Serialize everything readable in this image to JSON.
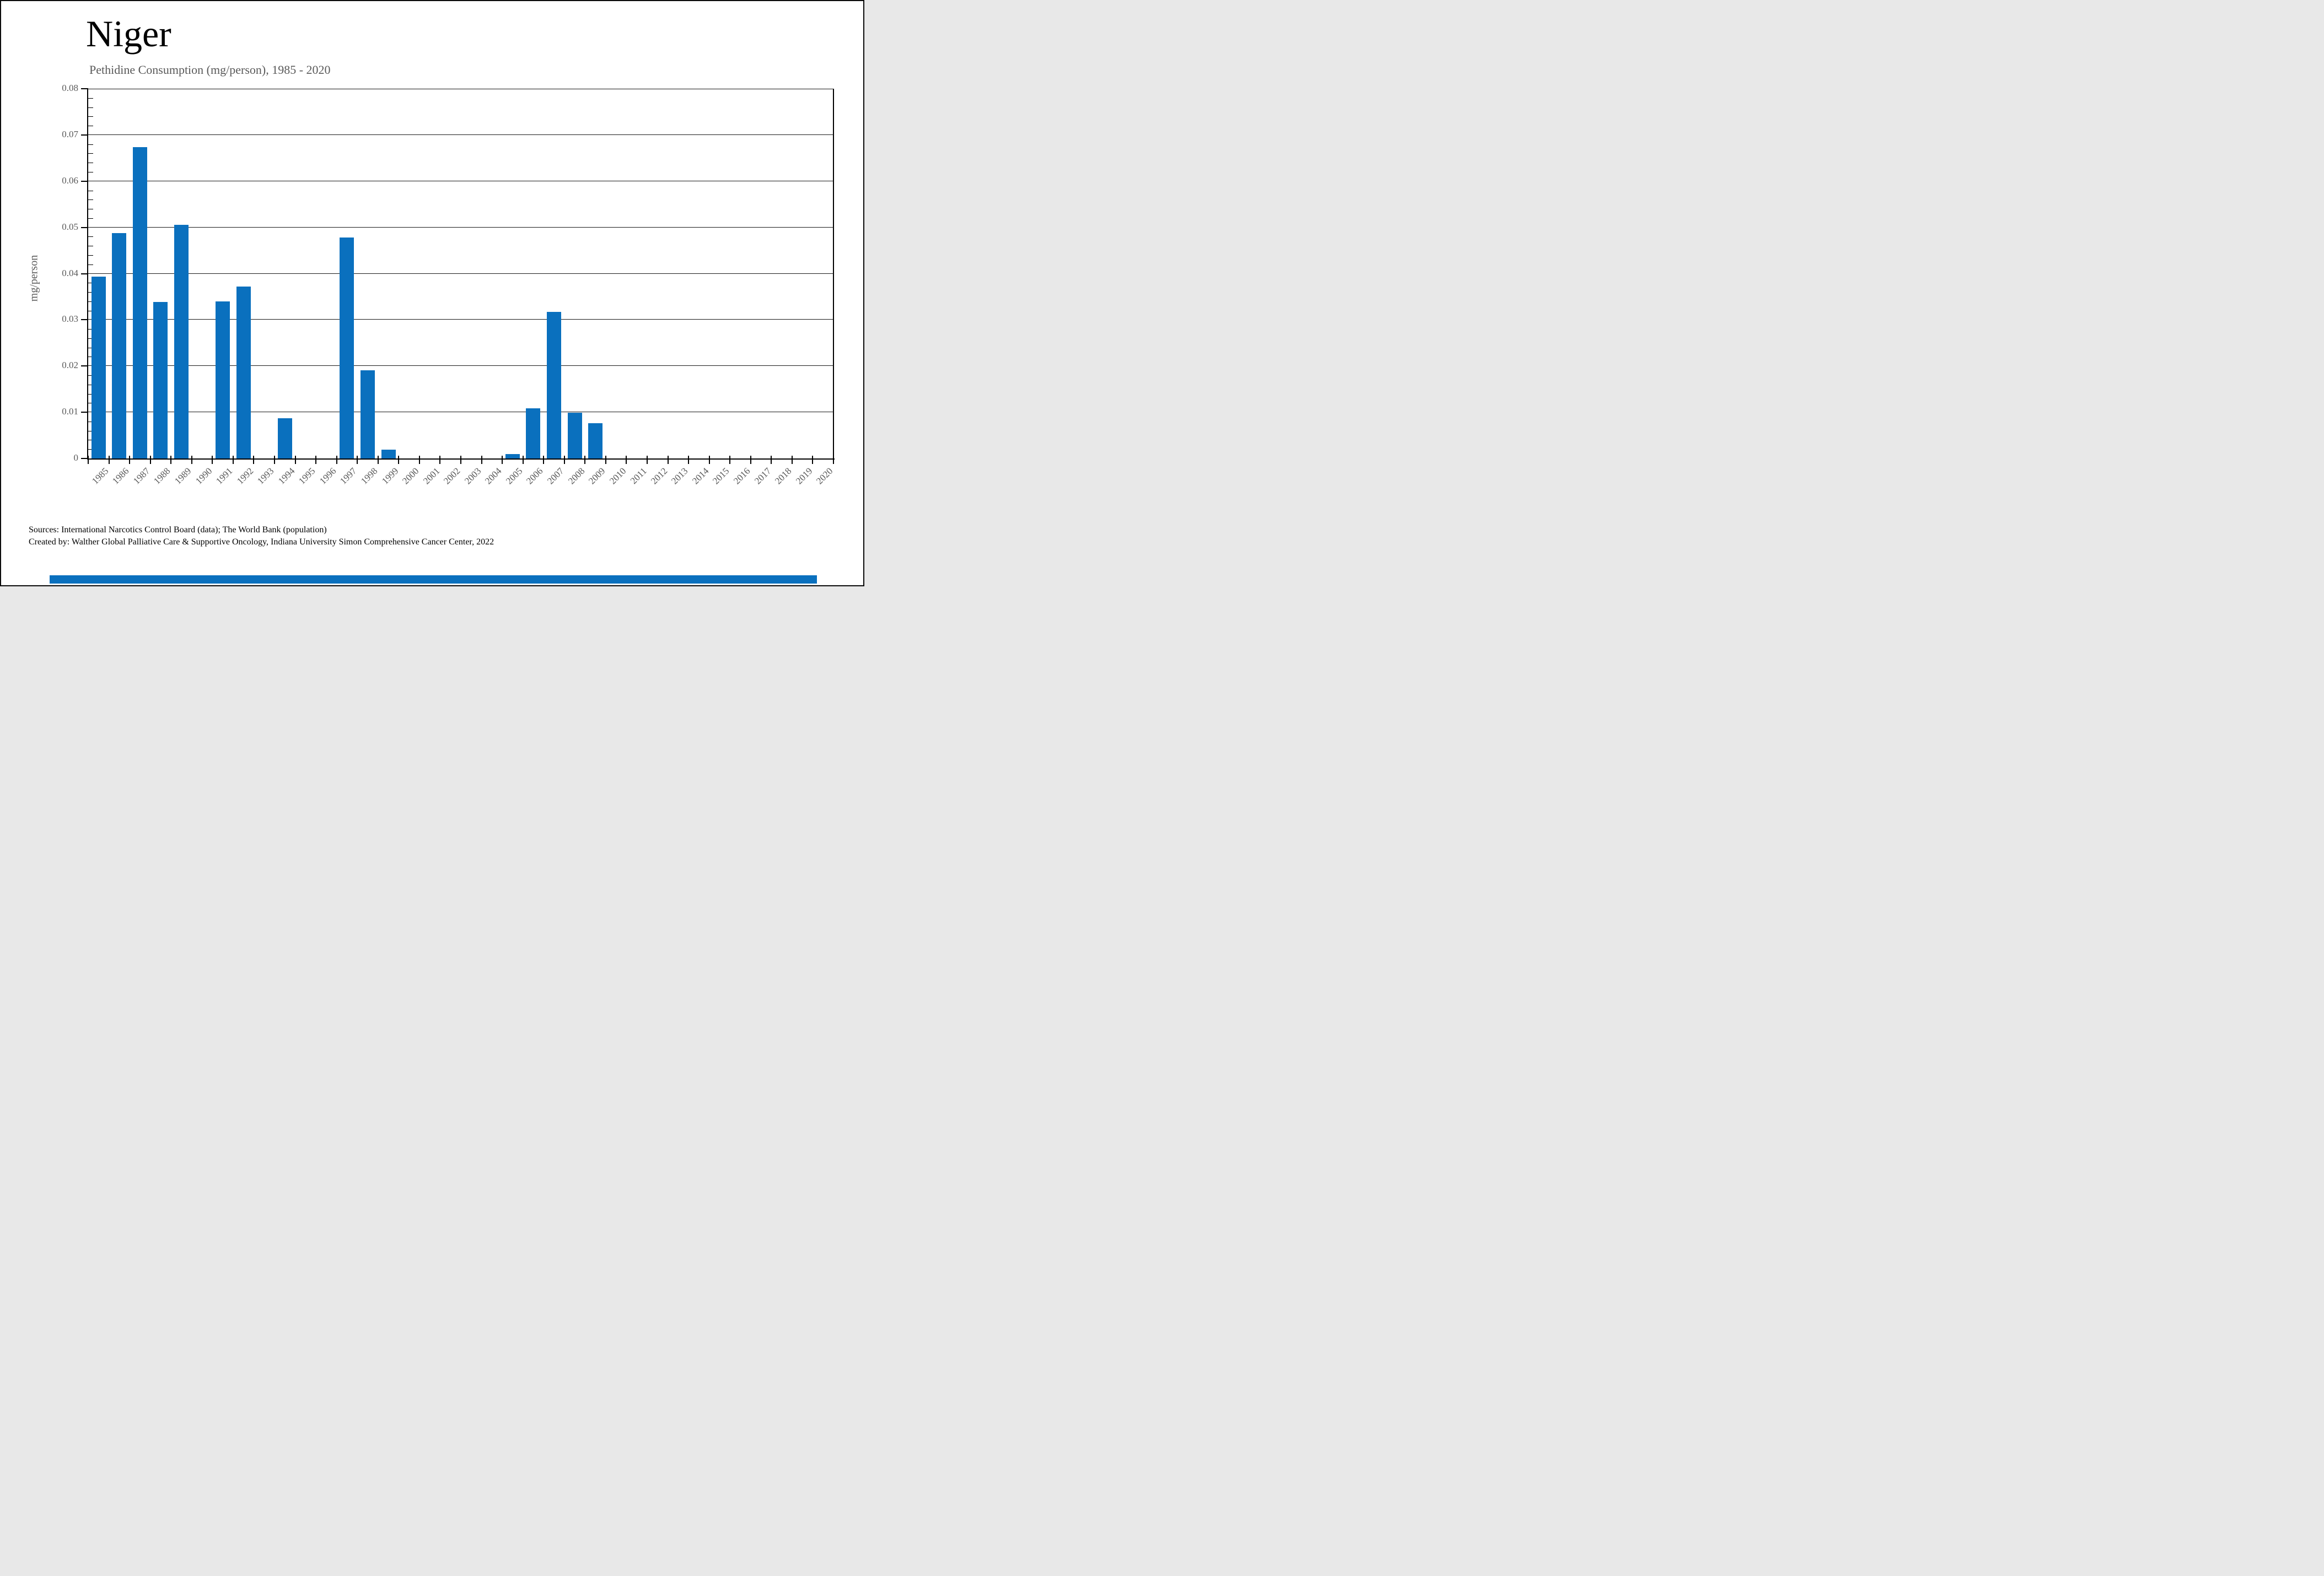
{
  "page": {
    "title": "Niger",
    "subtitle": "Pethidine Consumption (mg/person), 1985 - 2020"
  },
  "footer": {
    "line1": "Sources: International Narcotics Control Board (data); The World Bank (population)",
    "line2": "Created by: Walther Global Palliative Care & Supportive Oncology, Indiana University Simon Comprehensive Cancer Center, 2022"
  },
  "colors": {
    "bar_blue": "#0a70be",
    "accent_blue": "#0a70be",
    "label_gray": "#595959"
  },
  "chart_data": {
    "type": "bar",
    "title": "Niger",
    "subtitle": "Pethidine Consumption (mg/person), 1985 - 2020",
    "xlabel": "",
    "ylabel": "mg/person",
    "ylim": [
      0,
      0.08
    ],
    "ytick_step": 0.01,
    "ytick_labels": [
      "0",
      "0.01",
      "0.02",
      "0.03",
      "0.04",
      "0.05",
      "0.06",
      "0.07",
      "0.08"
    ],
    "minor_tick_step": 0.002,
    "grid": true,
    "legend": "none",
    "bar_color": "#0a70be",
    "categories": [
      "1985",
      "1986",
      "1987",
      "1988",
      "1989",
      "1990",
      "1991",
      "1992",
      "1993",
      "1994",
      "1995",
      "1996",
      "1997",
      "1998",
      "1999",
      "2000",
      "2001",
      "2002",
      "2003",
      "2004",
      "2005",
      "2006",
      "2007",
      "2008",
      "2009",
      "2010",
      "2011",
      "2012",
      "2013",
      "2014",
      "2015",
      "2016",
      "2017",
      "2018",
      "2019",
      "2020"
    ],
    "values": [
      0.0394,
      0.0488,
      0.0674,
      0.0339,
      0.0506,
      0,
      0.034,
      0.0372,
      0,
      0.0087,
      0,
      0,
      0.0478,
      0.0191,
      0.0019,
      0,
      0,
      0,
      0,
      0,
      0.0009,
      0.0108,
      0.0317,
      0.0099,
      0.0076,
      0,
      0,
      0,
      0,
      0,
      0,
      0,
      0,
      0,
      0,
      0
    ]
  }
}
